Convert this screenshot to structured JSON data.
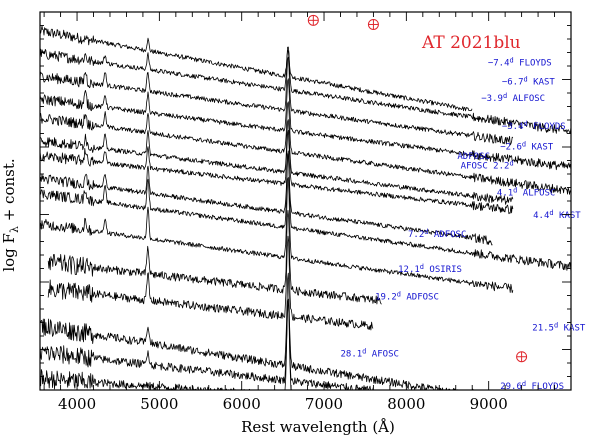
{
  "chart_data": {
    "type": "line",
    "title": "AT 2021blu",
    "xlabel": "Rest wavelength (Å)",
    "ylabel": "log F",
    "ylabel_sub": "λ",
    "ylabel_suffix": " + const.",
    "xlim": [
      3550,
      10000
    ],
    "xticks": [
      4000,
      5000,
      6000,
      7000,
      8000,
      9000
    ],
    "xticklabels": [
      "4000",
      "5000",
      "6000",
      "7000",
      "8000",
      "9000"
    ],
    "series": [
      {
        "name": "−7.4d FLOYDS",
        "x_range": [
          3550,
          8800
        ],
        "level": 0.95,
        "slope": -0.04,
        "lines": [
          {
            "x": 4861,
            "h": 0.03
          },
          {
            "x": 6563,
            "h": 0.07
          }
        ]
      },
      {
        "name": "−6.7d KAST",
        "x_range": [
          3550,
          10000
        ],
        "level": 0.89,
        "slope": -0.032,
        "lines": [
          {
            "x": 4102,
            "h": 0.015
          },
          {
            "x": 4340,
            "h": 0.02
          },
          {
            "x": 4861,
            "h": 0.04
          },
          {
            "x": 6563,
            "h": 0.12
          }
        ]
      },
      {
        "name": "−3.9d ALFOSC",
        "x_range": [
          3550,
          9300
        ],
        "level": 0.83,
        "slope": -0.03,
        "lines": [
          {
            "x": 4102,
            "h": 0.03
          },
          {
            "x": 4340,
            "h": 0.035
          },
          {
            "x": 4861,
            "h": 0.05
          },
          {
            "x": 6563,
            "h": 0.14
          }
        ]
      },
      {
        "name": "−3.4d FLOYDS",
        "x_range": [
          3550,
          10000
        ],
        "level": 0.77,
        "slope": -0.028,
        "lines": [
          {
            "x": 4102,
            "h": 0.03
          },
          {
            "x": 4340,
            "h": 0.035
          },
          {
            "x": 4861,
            "h": 0.05
          },
          {
            "x": 6563,
            "h": 0.14
          }
        ]
      },
      {
        "name": "−2.6d KAST",
        "x_range": [
          3550,
          10000
        ],
        "level": 0.72,
        "slope": -0.03,
        "lines": [
          {
            "x": 4102,
            "h": 0.03
          },
          {
            "x": 4340,
            "h": 0.035
          },
          {
            "x": 4861,
            "h": 0.05
          },
          {
            "x": 6563,
            "h": 0.14
          }
        ]
      },
      {
        "name": "ADFOSC",
        "x_range": [
          3550,
          9300
        ],
        "level": 0.66,
        "slope": -0.028,
        "lines": [
          {
            "x": 4102,
            "h": 0.03
          },
          {
            "x": 4340,
            "h": 0.035
          },
          {
            "x": 4861,
            "h": 0.06
          },
          {
            "x": 6563,
            "h": 0.14
          }
        ]
      },
      {
        "name": "AFOSC 2.2d",
        "x_range": [
          3550,
          9300
        ],
        "level": 0.62,
        "slope": -0.025,
        "lines": [
          {
            "x": 4102,
            "h": 0.03
          },
          {
            "x": 4340,
            "h": 0.035
          },
          {
            "x": 4861,
            "h": 0.06
          },
          {
            "x": 6563,
            "h": 0.14
          }
        ]
      },
      {
        "name": "4.1d ALFOSC",
        "x_range": [
          3550,
          9050
        ],
        "level": 0.56,
        "slope": -0.03,
        "lines": [
          {
            "x": 4102,
            "h": 0.03
          },
          {
            "x": 4340,
            "h": 0.04
          },
          {
            "x": 4861,
            "h": 0.07
          },
          {
            "x": 6563,
            "h": 0.16
          }
        ]
      },
      {
        "name": "4.4d KAST",
        "x_range": [
          3550,
          10000
        ],
        "level": 0.52,
        "slope": -0.03,
        "lines": [
          {
            "x": 4102,
            "h": 0.03
          },
          {
            "x": 4340,
            "h": 0.04
          },
          {
            "x": 4861,
            "h": 0.08
          },
          {
            "x": 6563,
            "h": 0.2
          }
        ]
      },
      {
        "name": "7.2d ADFOSC",
        "x_range": [
          3550,
          9300
        ],
        "level": 0.44,
        "slope": -0.03,
        "lines": [
          {
            "x": 4102,
            "h": 0.03
          },
          {
            "x": 4340,
            "h": 0.04
          },
          {
            "x": 4861,
            "h": 0.08
          },
          {
            "x": 6563,
            "h": 0.22
          }
        ]
      },
      {
        "name": "12.1d OSIRIS",
        "x_range": [
          3650,
          7700
        ],
        "level": 0.34,
        "slope": -0.025,
        "lines": [
          {
            "x": 4861,
            "h": 0.07
          },
          {
            "x": 6563,
            "h": 0.22
          }
        ]
      },
      {
        "name": "19.2d ADFOSC",
        "x_range": [
          3650,
          7600
        ],
        "level": 0.27,
        "slope": -0.025,
        "lines": [
          {
            "x": 4861,
            "h": 0.07
          },
          {
            "x": 6563,
            "h": 0.22
          }
        ]
      },
      {
        "name": "21.5d KAST",
        "x_range": [
          3550,
          10000
        ],
        "level": 0.17,
        "slope": -0.035,
        "lines": [
          {
            "x": 4861,
            "h": 0.05
          },
          {
            "x": 6563,
            "h": 0.24
          }
        ]
      },
      {
        "name": "28.1d AFOSC",
        "x_range": [
          3550,
          7600
        ],
        "level": 0.1,
        "slope": -0.025,
        "lines": [
          {
            "x": 4861,
            "h": 0.04
          },
          {
            "x": 6563,
            "h": 0.22
          }
        ]
      },
      {
        "name": "29.6d FLOYDS",
        "x_range": [
          3550,
          10000
        ],
        "level": 0.03,
        "slope": -0.015,
        "lines": [
          {
            "x": 6563,
            "h": 0.26
          }
        ]
      }
    ],
    "labels": [
      {
        "text": "−7.4",
        "sup": "d",
        "rest": " FLOYDS",
        "x": 8990,
        "y": 0.858
      },
      {
        "text": "−6.7",
        "sup": "d",
        "rest": " KAST",
        "x": 9160,
        "y": 0.808
      },
      {
        "text": "−3.9",
        "sup": "d",
        "rest": " ALFOSC",
        "x": 8910,
        "y": 0.765
      },
      {
        "text": "−3.4",
        "sup": "d",
        "rest": " FLOYDS",
        "x": 9160,
        "y": 0.69
      },
      {
        "text": "−2.6",
        "sup": "d",
        "rest": " KAST",
        "x": 9140,
        "y": 0.636
      },
      {
        "text": "ADFOSC",
        "sup": "",
        "rest": "",
        "x": 8620,
        "y": 0.611
      },
      {
        "text": "AFOSC 2.2",
        "sup": "d",
        "rest": "",
        "x": 8660,
        "y": 0.586
      },
      {
        "text": "4.1",
        "sup": "d",
        "rest": " ALFOSC",
        "x": 9100,
        "y": 0.515
      },
      {
        "text": "4.4",
        "sup": "d",
        "rest": " KAST",
        "x": 9540,
        "y": 0.455
      },
      {
        "text": "7.2",
        "sup": "d",
        "rest": " ADFOSC",
        "x": 8020,
        "y": 0.405
      },
      {
        "text": "12.1",
        "sup": "d",
        "rest": " OSIRIS",
        "x": 7900,
        "y": 0.312
      },
      {
        "text": "19.2",
        "sup": "d",
        "rest": " ADFOSC",
        "x": 7620,
        "y": 0.24
      },
      {
        "text": "21.5",
        "sup": "d",
        "rest": " KAST",
        "x": 9530,
        "y": 0.158
      },
      {
        "text": "28.1",
        "sup": "d",
        "rest": " AFOSC",
        "x": 7200,
        "y": 0.088
      },
      {
        "text": "29.6",
        "sup": "d",
        "rest": " FLOYDS",
        "x": 9140,
        "y": 0.002
      }
    ],
    "telluric_markers": [
      {
        "x": 6870,
        "y": 0.978
      },
      {
        "x": 7600,
        "y": 0.967
      },
      {
        "x": 9400,
        "y": 0.088
      }
    ],
    "grid": false,
    "legend": "none",
    "colors": {
      "spectra": "#000000",
      "labels": "#1515d0",
      "title": "#e0282e",
      "telluric": "#e0282e"
    }
  }
}
